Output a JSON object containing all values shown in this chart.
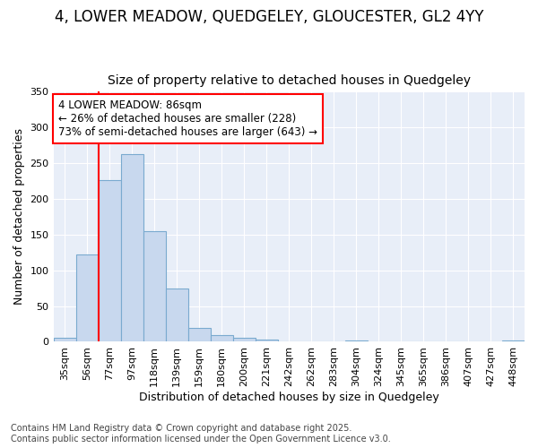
{
  "title1": "4, LOWER MEADOW, QUEDGELEY, GLOUCESTER, GL2 4YY",
  "title2": "Size of property relative to detached houses in Quedgeley",
  "xlabel": "Distribution of detached houses by size in Quedgeley",
  "ylabel": "Number of detached properties",
  "categories": [
    "35sqm",
    "56sqm",
    "77sqm",
    "97sqm",
    "118sqm",
    "139sqm",
    "159sqm",
    "180sqm",
    "200sqm",
    "221sqm",
    "242sqm",
    "262sqm",
    "283sqm",
    "304sqm",
    "324sqm",
    "345sqm",
    "365sqm",
    "386sqm",
    "407sqm",
    "427sqm",
    "448sqm"
  ],
  "values": [
    5,
    122,
    226,
    263,
    155,
    75,
    20,
    9,
    5,
    3,
    1,
    0,
    0,
    2,
    0,
    0,
    0,
    0,
    0,
    0,
    2
  ],
  "bar_color": "#c8d8ee",
  "bar_edge_color": "#7aaacf",
  "red_line_index": 2,
  "annotation_text": "4 LOWER MEADOW: 86sqm\n← 26% of detached houses are smaller (228)\n73% of semi-detached houses are larger (643) →",
  "annotation_box_color": "white",
  "annotation_box_edge_color": "red",
  "fig_background_color": "#ffffff",
  "plot_background_color": "#e8eef8",
  "grid_color": "#ffffff",
  "footer1": "Contains HM Land Registry data © Crown copyright and database right 2025.",
  "footer2": "Contains public sector information licensed under the Open Government Licence v3.0.",
  "ylim": [
    0,
    350
  ],
  "yticks": [
    0,
    50,
    100,
    150,
    200,
    250,
    300,
    350
  ],
  "title_fontsize": 12,
  "subtitle_fontsize": 10,
  "axis_label_fontsize": 9,
  "tick_fontsize": 8,
  "annotation_fontsize": 8.5,
  "footer_fontsize": 7
}
